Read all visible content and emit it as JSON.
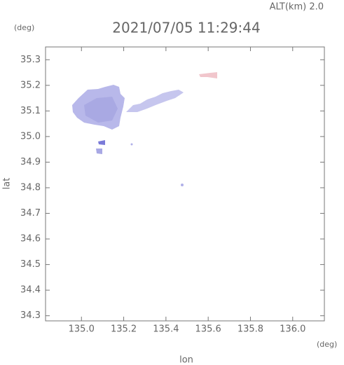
{
  "chart_data": {
    "type": "radar-map",
    "altitude_label": "ALT(km) 2.0",
    "title": "2021/07/05 11:29:44",
    "y_unit": "(deg)",
    "x_unit": "(deg)",
    "ylabel": "lat",
    "xlabel": "lon",
    "xlim": [
      134.83,
      136.15
    ],
    "ylim": [
      34.28,
      35.35
    ],
    "xticks": [
      {
        "value": 135,
        "label": "135.0"
      },
      {
        "value": 135.2,
        "label": "135.2"
      },
      {
        "value": 135.4,
        "label": "135.4"
      },
      {
        "value": 135.6,
        "label": "135.6"
      },
      {
        "value": 135.8,
        "label": "135.8"
      },
      {
        "value": 136,
        "label": "136.0"
      }
    ],
    "yticks": [
      34.3,
      34.4,
      34.5,
      34.6,
      34.7,
      34.8,
      34.9,
      {
        "value": 35,
        "label": "35.0"
      },
      35.1,
      35.2,
      35.3
    ]
  }
}
